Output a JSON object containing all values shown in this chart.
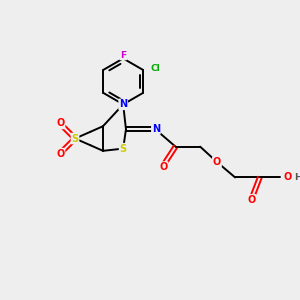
{
  "background_color": "#eeeeee",
  "figsize": [
    3.0,
    3.0
  ],
  "dpi": 100,
  "atom_colors": {
    "C": "#000000",
    "N": "#0000ff",
    "O": "#ff0000",
    "S": "#cccc00",
    "F": "#cc00cc",
    "Cl": "#00aa00",
    "H": "#555555"
  }
}
